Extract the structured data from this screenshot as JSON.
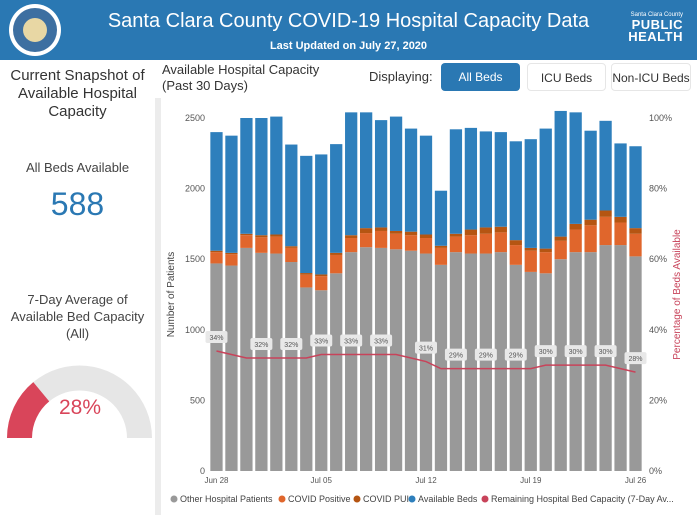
{
  "header": {
    "title": "Santa Clara County COVID-19 Hospital Capacity Data",
    "subtitle": "Last Updated on July 27, 2020",
    "logo_small": "Santa Clara County",
    "logo_line1": "PUBLIC",
    "logo_line2": "HEALTH",
    "seal_icon": "county-seal-icon"
  },
  "left": {
    "snapshot_title_1": "Current Snapshot of",
    "snapshot_title_2": "Available Hospital",
    "snapshot_title_3": "Capacity",
    "all_beds_label": "All Beds Available",
    "all_beds_value": "588",
    "avg_title_1": "7-Day Average of",
    "avg_title_2": "Available Bed Capacity",
    "avg_title_3": "(All)",
    "avg_value": "28%",
    "avg_fraction": 0.28,
    "gauge_color": "#d9455a"
  },
  "chart_header": {
    "title_1": "Available Hospital Capacity",
    "title_2": "(Past 30 Days)",
    "displaying_label": "Displaying:",
    "buttons": [
      "All Beds",
      "ICU Beds",
      "Non-ICU Beds"
    ],
    "selected": "All Beds"
  },
  "colors": {
    "accent": "#2a78b3",
    "other": "#999999",
    "covid_positive": "#e0662c",
    "covid_pui": "#b55512",
    "available": "#2e7fbc",
    "line": "#c8435a"
  },
  "chart_data": {
    "type": "bar",
    "stacked": true,
    "x_tick_labels": [
      "Jun 28",
      "Jul 05",
      "Jul 12",
      "Jul 19",
      "Jul 26"
    ],
    "x_tick_positions": [
      0,
      7,
      14,
      21,
      28
    ],
    "ylabel": "Number of Patients",
    "y2label": "Percentage of Beds Available",
    "ylim": [
      0,
      2500
    ],
    "y_ticks": [
      0,
      500,
      1000,
      1500,
      2000,
      2500
    ],
    "y2lim": [
      0,
      100
    ],
    "y2_ticks": [
      "0%",
      "20%",
      "40%",
      "60%",
      "80%",
      "100%"
    ],
    "series": [
      {
        "name": "Other Hospital Patients",
        "values": [
          1470,
          1455,
          1580,
          1545,
          1540,
          1480,
          1300,
          1280,
          1400,
          1550,
          1585,
          1580,
          1570,
          1560,
          1540,
          1460,
          1550,
          1540,
          1540,
          1550,
          1460,
          1410,
          1400,
          1500,
          1550,
          1550,
          1600,
          1600,
          1520
        ]
      },
      {
        "name": "COVID Positive",
        "values": [
          80,
          80,
          90,
          110,
          120,
          100,
          90,
          100,
          130,
          100,
          100,
          120,
          110,
          110,
          110,
          120,
          110,
          130,
          140,
          140,
          140,
          150,
          150,
          130,
          160,
          190,
          200,
          160,
          160
        ]
      },
      {
        "name": "COVID PUI",
        "values": [
          10,
          10,
          10,
          15,
          15,
          12,
          12,
          12,
          15,
          20,
          35,
          25,
          20,
          25,
          25,
          15,
          20,
          40,
          45,
          40,
          35,
          20,
          25,
          30,
          40,
          40,
          45,
          40,
          40
        ]
      },
      {
        "name": "Available Beds",
        "values": [
          840,
          830,
          820,
          830,
          835,
          720,
          830,
          850,
          770,
          870,
          820,
          760,
          810,
          730,
          700,
          390,
          740,
          720,
          680,
          670,
          700,
          770,
          850,
          890,
          790,
          630,
          635,
          520,
          580
        ]
      },
      {
        "name": "Remaining Hospital Bed Capacity (7-Day Av...",
        "values": [
          34,
          33,
          32,
          32,
          32,
          32,
          32,
          33,
          33,
          33,
          33,
          33,
          33,
          32,
          31,
          29,
          29,
          29,
          29,
          29,
          29,
          29,
          30,
          30,
          30,
          30,
          30,
          29,
          28
        ]
      }
    ],
    "data_labels": [
      {
        "i": 0,
        "text": "34%"
      },
      {
        "i": 3,
        "text": "32%"
      },
      {
        "i": 5,
        "text": "32%"
      },
      {
        "i": 7,
        "text": "33%"
      },
      {
        "i": 9,
        "text": "33%"
      },
      {
        "i": 11,
        "text": "33%"
      },
      {
        "i": 14,
        "text": "31%"
      },
      {
        "i": 16,
        "text": "29%"
      },
      {
        "i": 18,
        "text": "29%"
      },
      {
        "i": 20,
        "text": "29%"
      },
      {
        "i": 22,
        "text": "30%"
      },
      {
        "i": 24,
        "text": "30%"
      },
      {
        "i": 26,
        "text": "30%"
      },
      {
        "i": 28,
        "text": "28%"
      }
    ],
    "legend_placement": "bottom"
  }
}
